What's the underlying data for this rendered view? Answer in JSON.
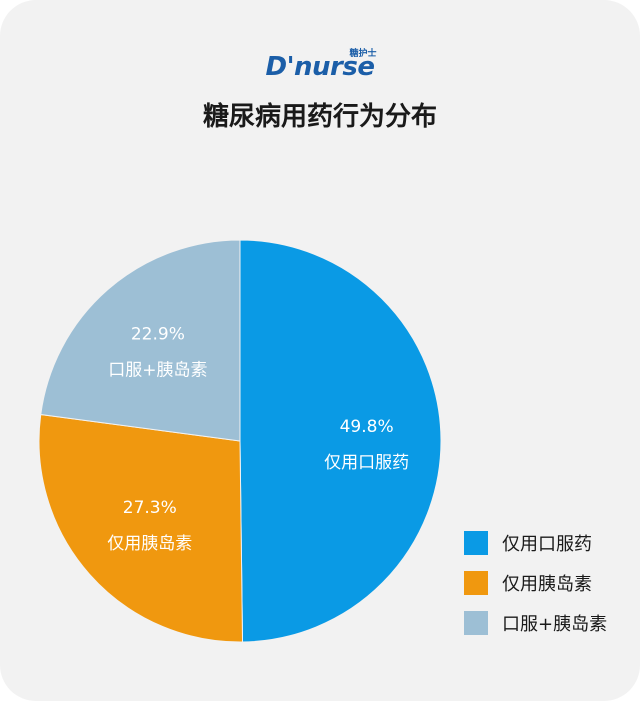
{
  "logo": {
    "text": "D'nurse",
    "cn": "糖护士"
  },
  "title": "糖尿病用药行为分布",
  "colors": {
    "oral_only": "#0a9ae5",
    "insulin_only": "#f0980f",
    "combined": "#9dbfd5"
  },
  "chart_data": {
    "type": "pie",
    "title": "糖尿病用药行为分布",
    "start_angle_deg": 0,
    "direction": "clockwise",
    "legend_position": "bottom-right",
    "slices": [
      {
        "label": "仅用口服药",
        "value": 49.8,
        "value_text": "49.8%",
        "color": "#0a9ae5"
      },
      {
        "label": "仅用胰岛素",
        "value": 27.3,
        "value_text": "27.3%",
        "color": "#f0980f"
      },
      {
        "label": "口服+胰岛素",
        "value": 22.9,
        "value_text": "22.9%",
        "color": "#9dbfd5"
      }
    ]
  },
  "legend": [
    {
      "label": "仅用口服药",
      "color": "#0a9ae5"
    },
    {
      "label": "仅用胰岛素",
      "color": "#f0980f"
    },
    {
      "label": "口服+胰岛素",
      "color": "#9dbfd5"
    }
  ]
}
